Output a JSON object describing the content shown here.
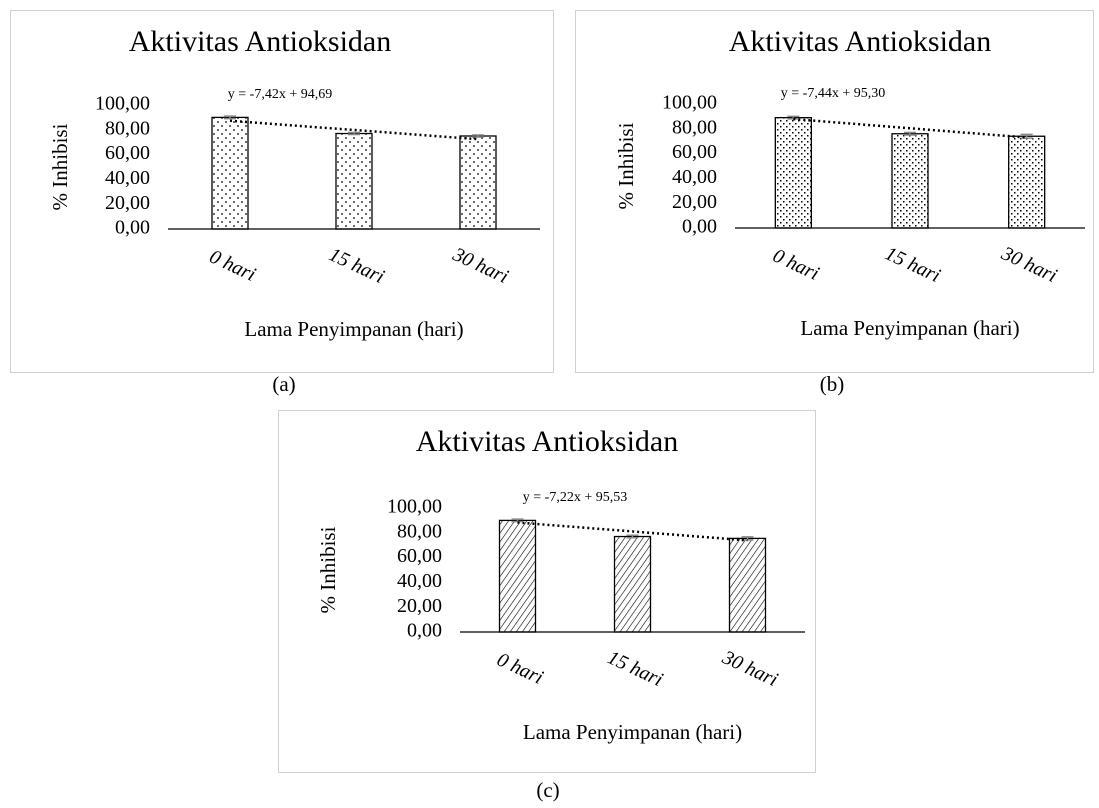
{
  "chart_data": [
    {
      "type": "bar",
      "panel_label": "(a)",
      "title": "Aktivitas Antioksidan",
      "x_label": "Lama Penyimpanan (hari)",
      "y_label": "% Inhibisi",
      "categories": [
        "0 hari",
        "15 hari",
        "30 hari"
      ],
      "values": [
        90,
        77,
        75
      ],
      "errors": [
        1,
        0.8,
        0.8
      ],
      "pattern": "dots",
      "trendline": {
        "label": "y = -7,42x + 94,69",
        "slope": -7.42,
        "intercept": 94.69
      },
      "ylim": [
        0,
        100
      ],
      "yticks": [
        {
          "value": 0,
          "label": "0,00"
        },
        {
          "value": 20,
          "label": "20,00"
        },
        {
          "value": 40,
          "label": "40,00"
        },
        {
          "value": 60,
          "label": "60,00"
        },
        {
          "value": 80,
          "label": "80,00"
        },
        {
          "value": 100,
          "label": "100,00"
        }
      ]
    },
    {
      "type": "bar",
      "panel_label": "(b)",
      "title": "Aktivitas Antioksidan",
      "x_label": "Lama Penyimpanan (hari)",
      "y_label": "% Inhibisi",
      "categories": [
        "0 hari",
        "15 hari",
        "30 hari"
      ],
      "values": [
        89,
        76,
        74
      ],
      "errors": [
        1,
        1,
        1.5
      ],
      "pattern": "checks",
      "trendline": {
        "label": "y = -7,44x + 95,30",
        "slope": -7.44,
        "intercept": 95.3
      },
      "ylim": [
        0,
        100
      ],
      "yticks": [
        {
          "value": 0,
          "label": "0,00"
        },
        {
          "value": 20,
          "label": "20,00"
        },
        {
          "value": 40,
          "label": "40,00"
        },
        {
          "value": 60,
          "label": "60,00"
        },
        {
          "value": 80,
          "label": "80,00"
        },
        {
          "value": 100,
          "label": "100,00"
        }
      ]
    },
    {
      "type": "bar",
      "panel_label": "(c)",
      "title": "Aktivitas Antioksidan",
      "x_label": "Lama Penyimpanan (hari)",
      "y_label": "% Inhibisi",
      "categories": [
        "0 hari",
        "15 hari",
        "30 hari"
      ],
      "values": [
        90,
        77,
        75.5
      ],
      "errors": [
        1,
        1,
        1.2
      ],
      "pattern": "hatch",
      "trendline": {
        "label": "y = -7,22x + 95,53",
        "slope": -7.22,
        "intercept": 95.53
      },
      "ylim": [
        0,
        100
      ],
      "yticks": [
        {
          "value": 0,
          "label": "0,00"
        },
        {
          "value": 20,
          "label": "20,00"
        },
        {
          "value": 40,
          "label": "40,00"
        },
        {
          "value": 60,
          "label": "60,00"
        },
        {
          "value": 80,
          "label": "80,00"
        },
        {
          "value": 100,
          "label": "100,00"
        }
      ]
    }
  ]
}
